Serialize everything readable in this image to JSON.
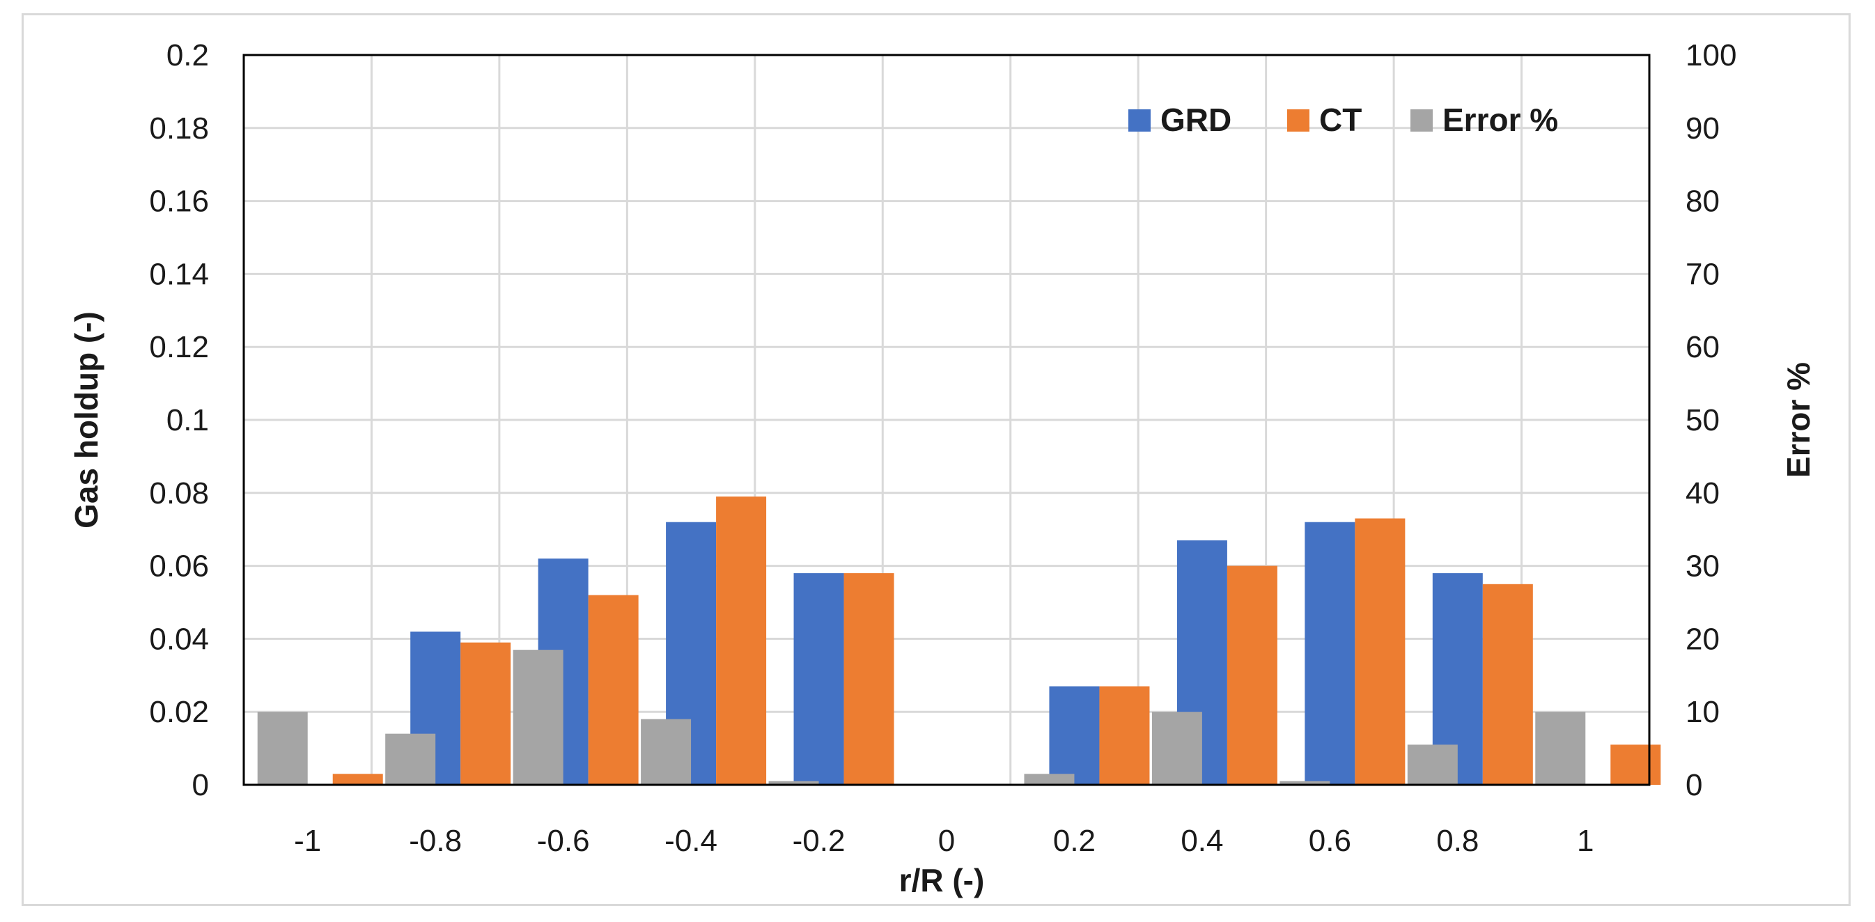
{
  "chart_data": {
    "type": "bar",
    "title": "",
    "categories": [
      "-1",
      "-0.8",
      "-0.6",
      "-0.4",
      "-0.2",
      "0",
      "0.2",
      "0.4",
      "0.6",
      "0.8",
      "1"
    ],
    "series": [
      {
        "name": "GRD",
        "axis": "left",
        "color": "#4472c4",
        "values": [
          0,
          0.042,
          0.062,
          0.072,
          0.058,
          0,
          0.027,
          0.067,
          0.072,
          0.058,
          0
        ]
      },
      {
        "name": "CT",
        "axis": "left",
        "color": "#ed7d31",
        "values": [
          0.003,
          0.039,
          0.052,
          0.079,
          0.058,
          0,
          0.027,
          0.06,
          0.073,
          0.055,
          0.011
        ]
      },
      {
        "name": "Error %",
        "axis": "right",
        "color": "#a5a5a5",
        "values": [
          10,
          7,
          18.5,
          9,
          0.5,
          0,
          1.5,
          10,
          0.5,
          5.5,
          10
        ]
      }
    ],
    "xlabel": "r/R (-)",
    "ylabel": "Gas holdup (-)",
    "y2label": "Error %",
    "ylim": [
      0,
      0.2
    ],
    "y2lim": [
      0,
      100
    ],
    "yticks": [
      "0",
      "0.02",
      "0.04",
      "0.06",
      "0.08",
      "0.1",
      "0.12",
      "0.14",
      "0.16",
      "0.18",
      "0.2"
    ],
    "y2ticks": [
      "0",
      "10",
      "20",
      "30",
      "40",
      "50",
      "60",
      "70",
      "80",
      "90",
      "100"
    ],
    "grid": true,
    "legend": "top-right",
    "legend_labels": [
      "GRD",
      "CT",
      "Error %"
    ]
  }
}
